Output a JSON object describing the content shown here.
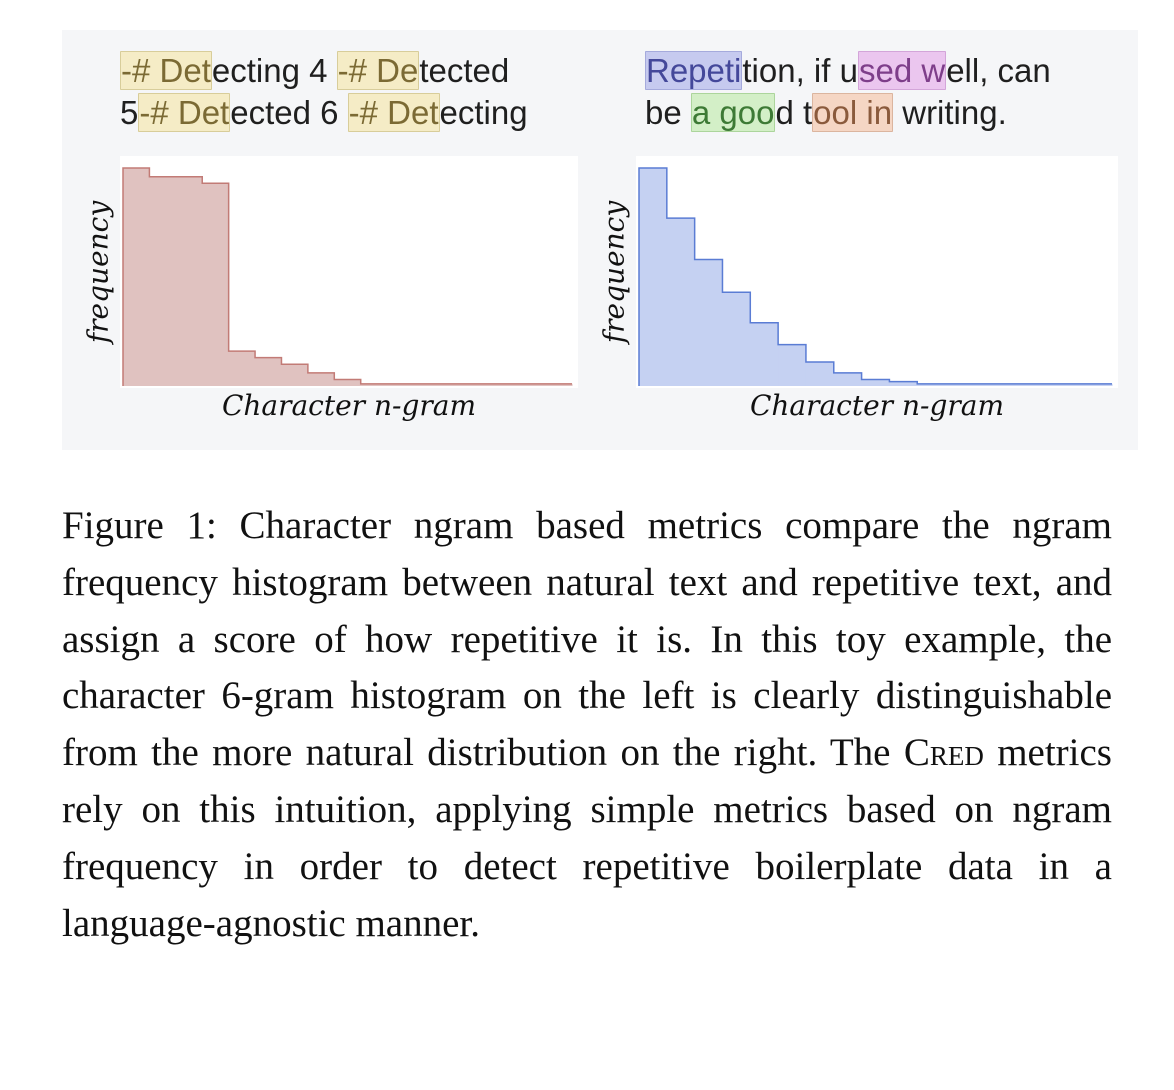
{
  "figure": {
    "left_text": {
      "line1": [
        {
          "text": "-# Det",
          "hl": "yellow"
        },
        {
          "text": "ecting 4 "
        },
        {
          "text": "-# De",
          "hl": "yellow"
        },
        {
          "text": "tected"
        }
      ],
      "line2": [
        {
          "text": "5"
        },
        {
          "text": "-# Det",
          "hl": "yellow"
        },
        {
          "text": "ected 6 "
        },
        {
          "text": "-# Det",
          "hl": "yellow"
        },
        {
          "text": "ecting"
        }
      ]
    },
    "right_text": {
      "line1": [
        {
          "text": "Repeti",
          "hl": "blue"
        },
        {
          "text": "tion, if u"
        },
        {
          "text": "sed w",
          "hl": "purple"
        },
        {
          "text": "ell, can"
        }
      ],
      "line2": [
        {
          "text": "be "
        },
        {
          "text": "a goo",
          "hl": "green"
        },
        {
          "text": "d t"
        },
        {
          "text": "ool in",
          "hl": "orange"
        },
        {
          "text": " writing."
        }
      ]
    },
    "left_chart": {
      "ylabel": "frequency",
      "xlabel": "Character n-gram"
    },
    "right_chart": {
      "ylabel": "frequency",
      "xlabel": "Character n-gram"
    }
  },
  "chart_data": [
    {
      "type": "area",
      "step": true,
      "xlabel": "Character n-gram",
      "ylabel": "frequency",
      "x": [
        0,
        1,
        2,
        3,
        4,
        5,
        6,
        7,
        8,
        9,
        10,
        11,
        12,
        13,
        14,
        15,
        16
      ],
      "values": [
        1.0,
        0.96,
        0.96,
        0.93,
        0.16,
        0.13,
        0.1,
        0.06,
        0.03,
        0.01,
        0.01,
        0.01,
        0.01,
        0.01,
        0.01,
        0.01,
        0.01
      ],
      "fill": "#e0c2c0",
      "stroke": "#c27b76"
    },
    {
      "type": "area",
      "step": true,
      "xlabel": "Character n-gram",
      "ylabel": "frequency",
      "x": [
        0,
        1,
        2,
        3,
        4,
        5,
        6,
        7,
        8,
        9,
        10,
        11,
        12,
        13,
        14,
        15,
        16
      ],
      "values": [
        1.0,
        0.77,
        0.58,
        0.43,
        0.29,
        0.19,
        0.11,
        0.06,
        0.03,
        0.02,
        0.01,
        0.01,
        0.01,
        0.01,
        0.01,
        0.01,
        0.01
      ],
      "fill": "#c5d1f2",
      "stroke": "#5a7cd4"
    }
  ],
  "caption": {
    "pre_smallcaps": "Figure 1: Character ngram based metrics compare the ngram frequency histogram between natural text and repetitive text, and assign a score of how repetitive it is. In this toy example, the character 6-gram histogram on the left is clearly distinguishable from the more natural distribution on the right.  The ",
    "smallcaps": "Cred",
    "post_smallcaps": " metrics rely on this intuition, applying simple metrics based on ngram frequency in order to detect repetitive boilerplate data in a language-agnostic manner."
  }
}
